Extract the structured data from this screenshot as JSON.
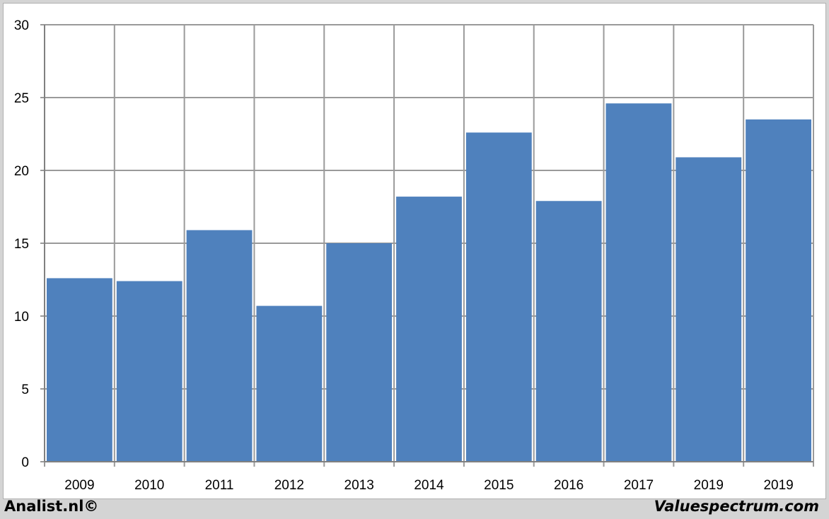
{
  "footer": {
    "left": "Analist.nl©",
    "right": "Valuespectrum.com"
  },
  "chart_data": {
    "type": "bar",
    "categories": [
      "2009",
      "2010",
      "2011",
      "2012",
      "2013",
      "2014",
      "2015",
      "2016",
      "2017",
      "2019",
      "2019"
    ],
    "values": [
      12.6,
      12.4,
      15.9,
      10.7,
      15.0,
      18.2,
      22.6,
      17.9,
      24.6,
      20.9,
      23.5
    ],
    "title": "",
    "xlabel": "",
    "ylabel": "",
    "ylim": [
      0,
      30
    ],
    "yticks": [
      "0",
      "5",
      "10",
      "15",
      "20",
      "25",
      "30"
    ],
    "grid": true,
    "bar_color": "#4f81bd",
    "grid_color": "#9a9a9a"
  }
}
